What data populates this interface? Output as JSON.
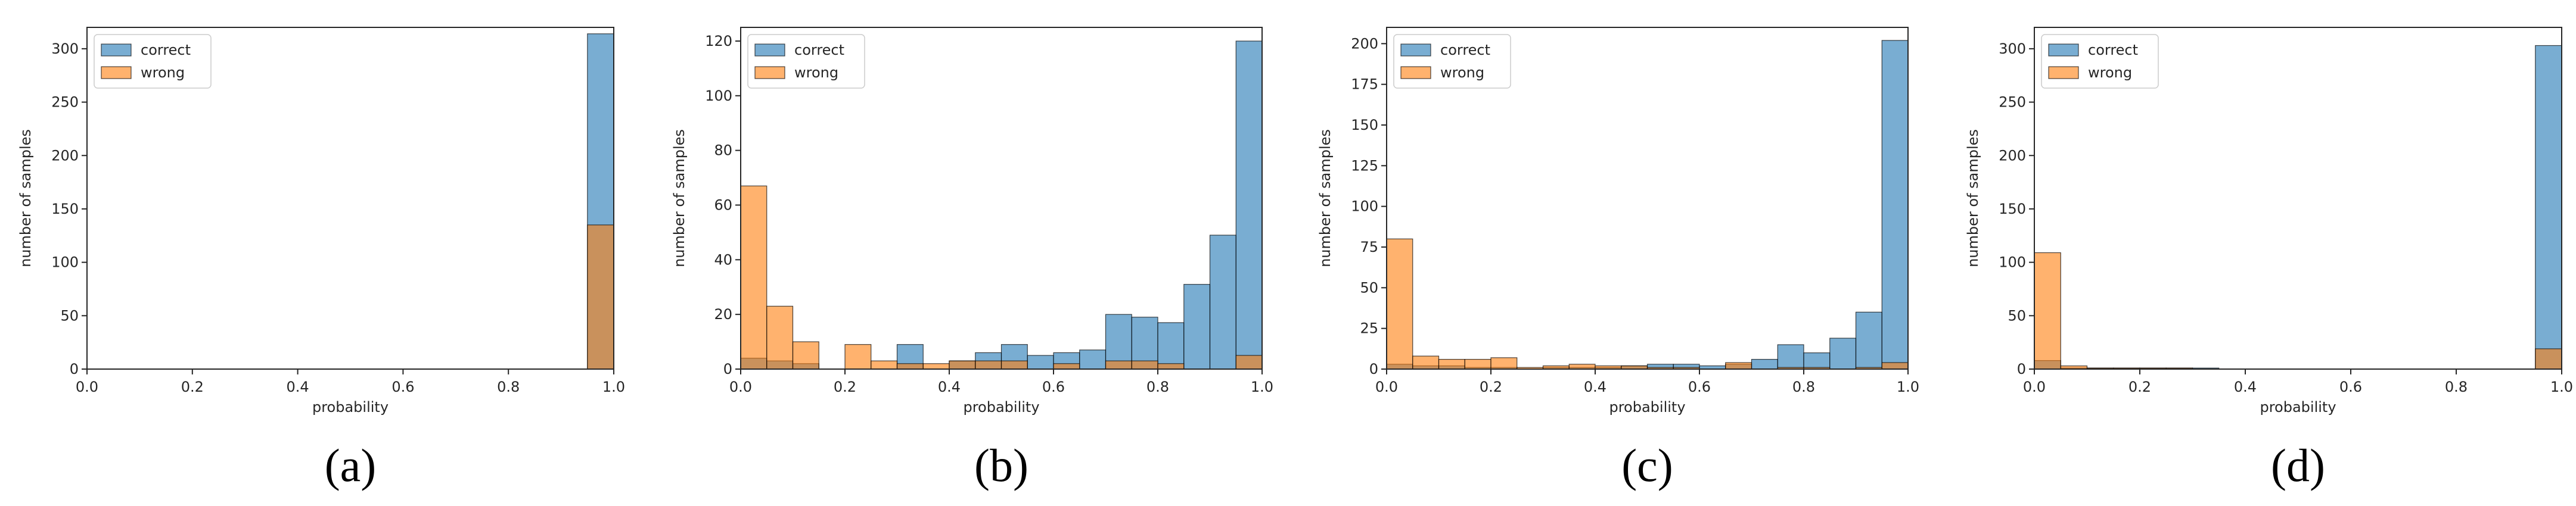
{
  "colors": {
    "correct": "#1f77b4",
    "wrong": "#ff7f0e",
    "axis": "#262626",
    "bar_alpha": 0.6
  },
  "chart_data": [
    {
      "type": "bar",
      "caption": "(a)",
      "xlabel": "probability",
      "ylabel": "number of samples",
      "xlim": [
        0,
        1
      ],
      "ylim": [
        0,
        320
      ],
      "xticks": [
        0.0,
        0.2,
        0.4,
        0.6,
        0.8,
        1.0
      ],
      "yticks": [
        0,
        50,
        100,
        150,
        200,
        250,
        300
      ],
      "bin_width": 0.05,
      "grid": false,
      "legend": "top-left",
      "series": [
        {
          "name": "correct",
          "values": [
            0,
            0,
            0,
            0,
            0,
            0,
            0,
            0,
            0,
            0,
            0,
            0,
            0,
            0,
            0,
            0,
            0,
            0,
            0,
            314
          ]
        },
        {
          "name": "wrong",
          "values": [
            0,
            0,
            0,
            0,
            0,
            0,
            0,
            0,
            0,
            0,
            0,
            0,
            0,
            0,
            0,
            0,
            0,
            0,
            0,
            135
          ]
        }
      ]
    },
    {
      "type": "bar",
      "caption": "(b)",
      "xlabel": "probability",
      "ylabel": "number of samples",
      "xlim": [
        0,
        1
      ],
      "ylim": [
        0,
        125
      ],
      "xticks": [
        0.0,
        0.2,
        0.4,
        0.6,
        0.8,
        1.0
      ],
      "yticks": [
        0,
        20,
        40,
        60,
        80,
        100,
        120
      ],
      "bin_width": 0.05,
      "grid": false,
      "legend": "top-left",
      "series": [
        {
          "name": "correct",
          "values": [
            4,
            3,
            2,
            0,
            0,
            0,
            9,
            0,
            3,
            6,
            9,
            5,
            6,
            7,
            20,
            19,
            17,
            31,
            49,
            120
          ]
        },
        {
          "name": "wrong",
          "values": [
            67,
            23,
            10,
            0,
            9,
            3,
            2,
            2,
            3,
            3,
            3,
            0,
            2,
            0,
            3,
            3,
            2,
            0,
            0,
            5
          ]
        }
      ]
    },
    {
      "type": "bar",
      "caption": "(c)",
      "xlabel": "probability",
      "ylabel": "number of samples",
      "xlim": [
        0,
        1
      ],
      "ylim": [
        0,
        210
      ],
      "xticks": [
        0.0,
        0.2,
        0.4,
        0.6,
        0.8,
        1.0
      ],
      "yticks": [
        0,
        25,
        50,
        75,
        100,
        125,
        150,
        175,
        200
      ],
      "bin_width": 0.05,
      "grid": false,
      "legend": "top-left",
      "series": [
        {
          "name": "correct",
          "values": [
            3,
            2,
            2,
            1,
            1,
            0,
            1,
            1,
            1,
            2,
            3,
            3,
            2,
            3,
            6,
            15,
            10,
            19,
            35,
            202
          ]
        },
        {
          "name": "wrong",
          "values": [
            80,
            8,
            6,
            6,
            7,
            1,
            2,
            3,
            2,
            2,
            1,
            1,
            0,
            4,
            0,
            1,
            1,
            0,
            1,
            4
          ]
        }
      ]
    },
    {
      "type": "bar",
      "caption": "(d)",
      "xlabel": "probability",
      "ylabel": "number of samples",
      "xlim": [
        0,
        1
      ],
      "ylim": [
        0,
        320
      ],
      "xticks": [
        0.0,
        0.2,
        0.4,
        0.6,
        0.8,
        1.0
      ],
      "yticks": [
        0,
        50,
        100,
        150,
        200,
        250,
        300
      ],
      "bin_width": 0.05,
      "grid": false,
      "legend": "top-left",
      "series": [
        {
          "name": "correct",
          "values": [
            8,
            1,
            1,
            1,
            1,
            1,
            1,
            0,
            0,
            0,
            0,
            0,
            0,
            0,
            0,
            0,
            0,
            0,
            0,
            303
          ]
        },
        {
          "name": "wrong",
          "values": [
            109,
            3,
            1,
            1,
            1,
            1,
            0,
            0,
            0,
            0,
            0,
            0,
            0,
            0,
            0,
            0,
            0,
            0,
            0,
            19
          ]
        }
      ]
    }
  ]
}
